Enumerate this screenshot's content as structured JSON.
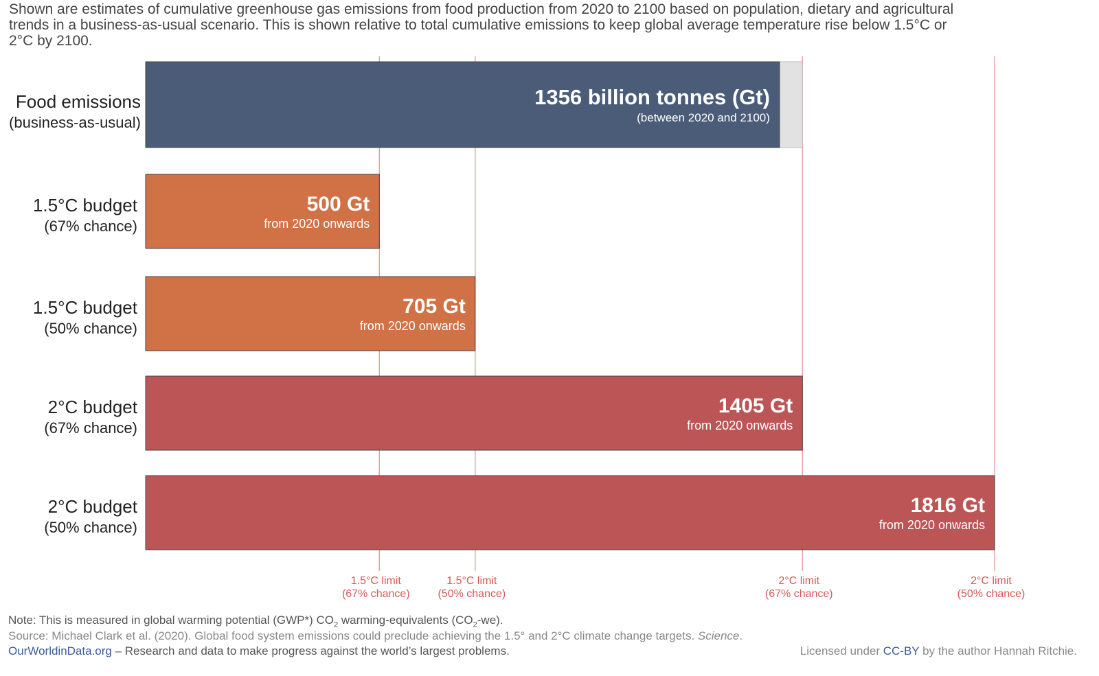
{
  "intro": "Shown are estimates of cumulative greenhouse gas emissions from food production from 2020 to 2100 based on population, dietary and agricultural trends in a business-as-usual scenario. This is shown relative to total cumulative emissions to keep global average temperature rise below 1.5°C  or 2°C  by 2100.",
  "chart_data": {
    "type": "bar",
    "orientation": "horizontal",
    "unit": "Gt CO2-we",
    "categories": [
      [
        "Food emissions",
        "(business-as-usual)"
      ],
      [
        "1.5°C budget",
        "(67% chance)"
      ],
      [
        "1.5°C budget",
        "(50% chance)"
      ],
      [
        "2°C budget",
        "(67% chance)"
      ],
      [
        "2°C budget",
        "(50% chance)"
      ]
    ],
    "values": [
      1356,
      500,
      705,
      1405,
      1816
    ],
    "value_labels": [
      "1356 billion tonnes (Gt)",
      "500 Gt",
      "705 Gt",
      "1405 Gt",
      "1816 Gt"
    ],
    "sub_labels": [
      "(between 2020 and 2100)",
      "from 2020 onwards",
      "from 2020 onwards",
      "from 2020 onwards",
      "from 2020 onwards"
    ],
    "colors": [
      "#4a5c78",
      "#d07146",
      "#d07146",
      "#bc5556",
      "#bc5556"
    ],
    "food_remainder_value": 1405,
    "remainder_color": "#e2e2e2",
    "limit_color": "#e89a9a",
    "limit_label_color": "#d25a55",
    "limits": [
      {
        "value": 500,
        "label1": "1.5°C limit",
        "label2": "(67% chance)"
      },
      {
        "value": 705,
        "label1": "1.5°C limit",
        "label2": "(50% chance)"
      },
      {
        "value": 1405,
        "label1": "2°C limit",
        "label2": "(67% chance)"
      },
      {
        "value": 1816,
        "label1": "2°C limit",
        "label2": "(50% chance)"
      }
    ],
    "xlim": [
      0,
      1816
    ],
    "legend": "none",
    "grid": false
  },
  "footer": {
    "note_pre": "Note: This is measured in global warming potential (GWP*) CO",
    "note_sub1": "2",
    "note_mid": " warming-equivalents (CO",
    "note_sub2": "2",
    "note_post": "-we).",
    "source_pre": "Source: Michael Clark et al. (2020). Global food system emissions could preclude achieving the 1.5° and 2°C climate change targets. ",
    "source_journal": "Science",
    "source_post": ".",
    "owid_name": "OurWorldinData.org",
    "owid_tagline": " – Research and data to make progress against the world’s largest problems.",
    "license_pre": "Licensed under ",
    "license_link": "CC-BY",
    "license_post": " by the author Hannah Ritchie."
  }
}
